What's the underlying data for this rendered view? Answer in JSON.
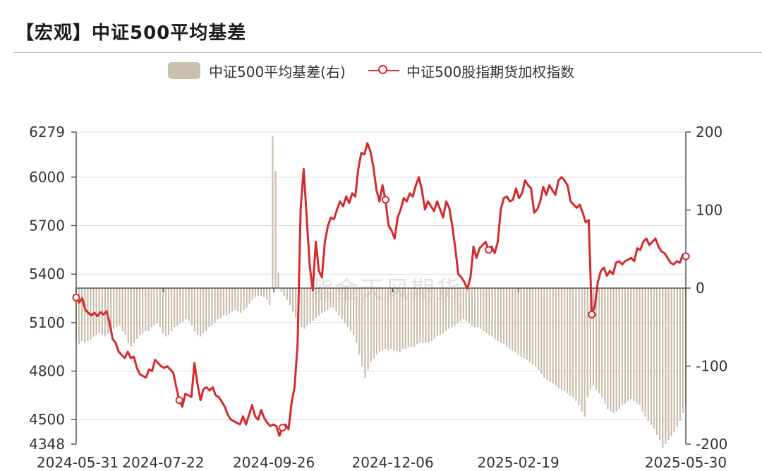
{
  "title": "【宏观】中证500平均基差",
  "chart_data": {
    "type": "bar+line",
    "x_start": "2024-05-31",
    "x_end": "2025-05-30",
    "x_tick_labels": [
      "2024-05-31",
      "2024-07-22",
      "2024-09-26",
      "2024-12-06",
      "2025-02-19",
      "2025-05-30"
    ],
    "y_left": {
      "min": 4348,
      "max": 6279,
      "ticks": [
        4348,
        4500,
        4800,
        5100,
        5400,
        5700,
        6000,
        6279
      ]
    },
    "y_right": {
      "min": -200,
      "max": 200,
      "ticks": [
        200,
        100,
        0,
        -100,
        -200
      ]
    },
    "watermark": "紫金天风期货",
    "series": [
      {
        "name": "中证500平均基差(右)",
        "kind": "bar",
        "axis": "right",
        "color": "#cbbfae",
        "values": [
          -70,
          -72,
          -68,
          -70,
          -68,
          -66,
          -62,
          -60,
          -58,
          -60,
          -62,
          -58,
          -55,
          -52,
          -50,
          -48,
          -55,
          -60,
          -70,
          -75,
          -70,
          -65,
          -60,
          -58,
          -55,
          -55,
          -50,
          -48,
          -45,
          -50,
          -58,
          -62,
          -60,
          -55,
          -50,
          -48,
          -45,
          -43,
          -40,
          -42,
          -48,
          -55,
          -60,
          -62,
          -58,
          -55,
          -50,
          -48,
          -45,
          -40,
          -38,
          -35,
          -35,
          -33,
          -30,
          -28,
          -30,
          -32,
          -28,
          -25,
          -20,
          -15,
          -12,
          -10,
          -10,
          -12,
          -15,
          -22,
          195,
          150,
          20,
          -5,
          -10,
          -15,
          -22,
          -30,
          -38,
          -45,
          -50,
          -52,
          -48,
          -45,
          -42,
          -38,
          -35,
          -32,
          -30,
          -28,
          -25,
          -25,
          -30,
          -35,
          -40,
          -45,
          -50,
          -55,
          -60,
          -70,
          -85,
          -100,
          -115,
          -105,
          -95,
          -90,
          -85,
          -82,
          -80,
          -78,
          -80,
          -78,
          -80,
          -80,
          -82,
          -78,
          -78,
          -76,
          -75,
          -75,
          -72,
          -70,
          -70,
          -70,
          -70,
          -68,
          -65,
          -62,
          -60,
          -58,
          -55,
          -52,
          -50,
          -48,
          -45,
          -42,
          -40,
          -42,
          -45,
          -48,
          -50,
          -50,
          -52,
          -55,
          -58,
          -60,
          -62,
          -65,
          -68,
          -70,
          -72,
          -75,
          -78,
          -80,
          -82,
          -85,
          -88,
          -90,
          -92,
          -95,
          -98,
          -100,
          -105,
          -110,
          -115,
          -118,
          -120,
          -122,
          -125,
          -128,
          -130,
          -132,
          -135,
          -138,
          -140,
          -145,
          -150,
          -158,
          -165,
          -140,
          -130,
          -125,
          -130,
          -135,
          -140,
          -148,
          -155,
          -158,
          -160,
          -158,
          -155,
          -150,
          -148,
          -145,
          -142,
          -145,
          -148,
          -150,
          -158,
          -165,
          -170,
          -175,
          -180,
          -188,
          -195,
          -205,
          -200,
          -195,
          -190,
          -185,
          -178,
          -170,
          -160,
          -150
        ]
      },
      {
        "name": "中证500股指期货加权指数",
        "kind": "line",
        "axis": "left",
        "color": "#d42b2f",
        "values": [
          5255,
          5225,
          5250,
          5180,
          5160,
          5145,
          5160,
          5140,
          5165,
          5150,
          5170,
          5100,
          5000,
          4975,
          4920,
          4900,
          4880,
          4920,
          4880,
          4890,
          4820,
          4780,
          4770,
          4760,
          4810,
          4800,
          4870,
          4850,
          4830,
          4820,
          4830,
          4810,
          4790,
          4700,
          4620,
          4580,
          4660,
          4650,
          4640,
          4850,
          4720,
          4620,
          4690,
          4700,
          4680,
          4700,
          4650,
          4640,
          4610,
          4580,
          4530,
          4500,
          4490,
          4480,
          4470,
          4520,
          4470,
          4530,
          4590,
          4520,
          4500,
          4560,
          4510,
          4480,
          4460,
          4470,
          4460,
          4400,
          4450,
          4470,
          4440,
          4600,
          4700,
          4970,
          5800,
          6050,
          5750,
          5450,
          5300,
          5600,
          5420,
          5380,
          5600,
          5700,
          5750,
          5740,
          5800,
          5850,
          5820,
          5880,
          5840,
          5900,
          5880,
          6050,
          6150,
          6140,
          6210,
          6160,
          6060,
          5920,
          5850,
          5950,
          5860,
          5700,
          5670,
          5620,
          5750,
          5800,
          5870,
          5850,
          5900,
          5880,
          5950,
          6000,
          5920,
          5800,
          5850,
          5820,
          5790,
          5850,
          5800,
          5750,
          5850,
          5810,
          5700,
          5560,
          5400,
          5380,
          5350,
          5310,
          5380,
          5570,
          5500,
          5560,
          5580,
          5600,
          5550,
          5570,
          5530,
          5600,
          5800,
          5870,
          5880,
          5850,
          5860,
          5930,
          5870,
          5900,
          5980,
          5950,
          5930,
          5780,
          5800,
          5850,
          5940,
          5890,
          5950,
          5920,
          5890,
          5980,
          6000,
          5980,
          5950,
          5850,
          5830,
          5810,
          5830,
          5780,
          5720,
          5735,
          5150,
          5200,
          5350,
          5420,
          5440,
          5390,
          5420,
          5400,
          5470,
          5480,
          5460,
          5480,
          5490,
          5500,
          5480,
          5560,
          5550,
          5600,
          5620,
          5580,
          5600,
          5620,
          5570,
          5540,
          5530,
          5500,
          5470,
          5460,
          5480,
          5470,
          5520,
          5510
        ]
      }
    ]
  }
}
